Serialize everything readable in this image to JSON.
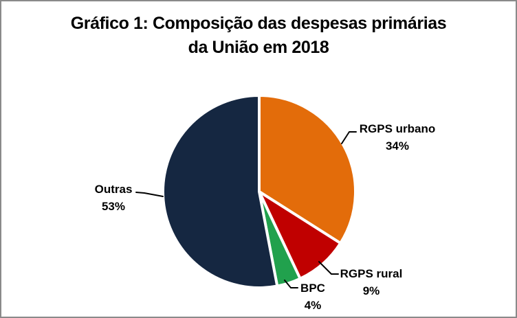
{
  "chart_data": {
    "type": "pie",
    "title": "Gráfico 1: Composição das despesas primárias da União em 2018",
    "title_lines": [
      "Gráfico 1: Composição das despesas primárias",
      "da União em 2018"
    ],
    "unit": "%",
    "legend_position": "none",
    "label_style": "outside-with-leader-lines",
    "start_angle_deg": 0,
    "direction": "clockwise",
    "slices": [
      {
        "label": "RGPS urbano",
        "value": 34,
        "pct_label": "34%",
        "color": "#E36C0A"
      },
      {
        "label": "RGPS rural",
        "value": 9,
        "pct_label": "9%",
        "color": "#C00000"
      },
      {
        "label": "BPC",
        "value": 4,
        "pct_label": "4%",
        "color": "#21A14D"
      },
      {
        "label": "Outras",
        "value": 53,
        "pct_label": "53%",
        "color": "#152741"
      }
    ]
  },
  "frame": {
    "border_color": "#8A8A8A",
    "background": "#FFFFFF",
    "leader_line_color": "#000000"
  }
}
